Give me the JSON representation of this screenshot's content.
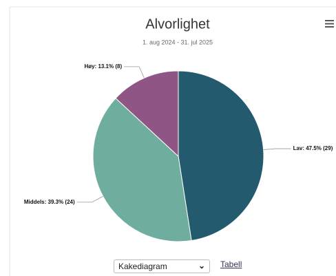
{
  "chart_data": {
    "type": "pie",
    "title": "Alvorlighet",
    "subtitle": "1. aug 2024 - 31. jul 2025",
    "values": [
      29,
      24,
      8
    ],
    "value_labels": [
      "Lav: 47.5% (29)",
      "Middels: 39.3% (24)",
      "Høy: 13.1% (8)"
    ],
    "colors": [
      "#245a6e",
      "#6fae9f",
      "#8e5585"
    ]
  },
  "controls": {
    "select": "Kakediagram",
    "link": "Tabell"
  }
}
